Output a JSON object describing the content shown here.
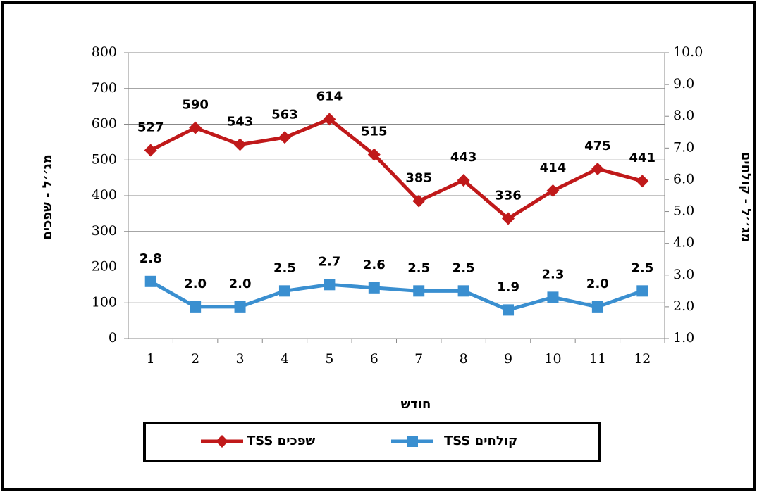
{
  "chart_data": {
    "type": "line",
    "categories": [
      "1",
      "2",
      "3",
      "4",
      "5",
      "6",
      "7",
      "8",
      "9",
      "10",
      "11",
      "12"
    ],
    "x_label": "חודש",
    "y_label": "מג׳׳ל - שפכים",
    "y2_label": "מג׳׳ל - קולחים",
    "ylim": [
      0,
      800
    ],
    "yticks": [
      0,
      100,
      200,
      300,
      400,
      500,
      600,
      700,
      800
    ],
    "y2lim": [
      1,
      10
    ],
    "y2ticks": [
      {
        "value": 1,
        "label": "1.0"
      },
      {
        "value": 2,
        "label": "2.0"
      },
      {
        "value": 3,
        "label": "3.0"
      },
      {
        "value": 4,
        "label": "4.0"
      },
      {
        "value": 5,
        "label": "5.0"
      },
      {
        "value": 6,
        "label": "6.0"
      },
      {
        "value": 7,
        "label": "7.0"
      },
      {
        "value": 8,
        "label": "8.0"
      },
      {
        "value": 9,
        "label": "9.0"
      },
      {
        "value": 10,
        "label": "10.0"
      }
    ],
    "grid": true,
    "legend": "bottom",
    "series": [
      {
        "name": "שפכים TSS",
        "color": "#c0191a",
        "marker": "diamond",
        "axis": "y",
        "values": [
          527,
          590,
          543,
          563,
          614,
          515,
          385,
          443,
          336,
          414,
          475,
          441
        ]
      },
      {
        "name": "קולחים TSS",
        "color": "#3a8fd0",
        "marker": "square",
        "axis": "y2",
        "values": [
          2.8,
          2.0,
          2.0,
          2.5,
          2.7,
          2.6,
          2.5,
          2.5,
          1.9,
          2.3,
          2.0,
          2.5
        ],
        "value_labels": [
          "2.8",
          "2.0",
          "2.0",
          "2.5",
          "2.7",
          "2.6",
          "2.5",
          "2.5",
          "1.9",
          "2.3",
          "2.0",
          "2.5"
        ]
      }
    ]
  }
}
